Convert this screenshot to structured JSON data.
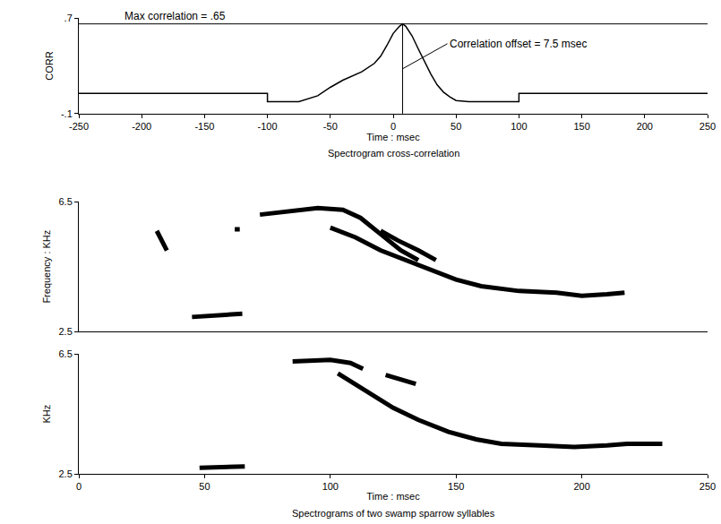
{
  "chart_data": [
    {
      "type": "line",
      "title": "Spectrogram cross-correlation",
      "x_label": "Time : msec",
      "y_label": "CORR",
      "x": [
        -250,
        -100,
        -100,
        -75,
        -60,
        -50,
        -40,
        -25,
        -15,
        -10,
        -5,
        0,
        5,
        7.5,
        10,
        15,
        20,
        25,
        30,
        35,
        40,
        45,
        50,
        60,
        100,
        100,
        250
      ],
      "values": [
        0.07,
        0.07,
        0.0,
        0.0,
        0.05,
        0.12,
        0.18,
        0.25,
        0.32,
        0.38,
        0.47,
        0.57,
        0.63,
        0.65,
        0.63,
        0.55,
        0.44,
        0.33,
        0.23,
        0.14,
        0.08,
        0.04,
        0.01,
        0.0,
        0.0,
        0.07,
        0.07
      ],
      "color": "#000000",
      "xlim": [
        -250,
        250
      ],
      "xticks": [
        -250,
        -200,
        -150,
        -100,
        -50,
        0,
        50,
        100,
        150,
        200,
        250
      ],
      "ylim": [
        -0.1,
        0.7
      ],
      "yticks": [
        {
          "value": -0.1,
          "label": "-.1"
        },
        {
          "value": 0.7,
          "label": ".7"
        }
      ],
      "max_correlation": {
        "text": "Max correlation = .65",
        "value": 0.65
      },
      "offset": {
        "text": "Correlation offset = 7.5 msec",
        "value": 7.5
      }
    },
    {
      "type": "line",
      "y_label": "Frequency : KHz",
      "color": "#000000",
      "tick_labels": "y",
      "xlim": [
        0,
        250
      ],
      "ylim": [
        2.5,
        6.5
      ],
      "yticks": [
        2.5,
        6.5
      ],
      "series": [
        {
          "x": [
            31,
            33,
            35
          ],
          "values": [
            5.6,
            5.3,
            5.0
          ]
        },
        {
          "x": [
            45,
            55,
            65
          ],
          "values": [
            2.95,
            3.0,
            3.05
          ]
        },
        {
          "x": [
            62,
            64
          ],
          "values": [
            5.65,
            5.65
          ]
        },
        {
          "x": [
            72,
            85,
            95,
            105,
            112,
            120,
            128,
            135
          ],
          "values": [
            6.1,
            6.2,
            6.3,
            6.25,
            6.0,
            5.5,
            5.0,
            4.7
          ]
        },
        {
          "x": [
            100,
            110,
            120,
            130,
            140,
            150,
            160,
            175,
            190,
            200,
            210,
            217
          ],
          "values": [
            5.7,
            5.4,
            5.0,
            4.7,
            4.4,
            4.1,
            3.9,
            3.75,
            3.7,
            3.6,
            3.65,
            3.7
          ]
        },
        {
          "x": [
            120,
            127,
            135,
            142
          ],
          "values": [
            5.6,
            5.3,
            5.0,
            4.7
          ]
        }
      ]
    },
    {
      "type": "line",
      "title": "Spectrograms of two swamp sparrow syllables",
      "x_label": "Time : msec",
      "y_label": "KHz",
      "color": "#000000",
      "xlim": [
        0,
        250
      ],
      "xticks": [
        0,
        50,
        100,
        150,
        200,
        250
      ],
      "ylim": [
        2.5,
        6.5
      ],
      "yticks": [
        2.5,
        6.5
      ],
      "series": [
        {
          "x": [
            48,
            57,
            66
          ],
          "values": [
            2.7,
            2.72,
            2.75
          ]
        },
        {
          "x": [
            85,
            100,
            108,
            113
          ],
          "values": [
            6.25,
            6.3,
            6.2,
            6.0
          ]
        },
        {
          "x": [
            122,
            128,
            134
          ],
          "values": [
            5.8,
            5.65,
            5.5
          ]
        },
        {
          "x": [
            103,
            115,
            125,
            135,
            147,
            158,
            168,
            183,
            197,
            210,
            218,
            232
          ],
          "values": [
            5.85,
            5.2,
            4.7,
            4.3,
            3.9,
            3.65,
            3.5,
            3.45,
            3.4,
            3.45,
            3.5,
            3.5
          ]
        }
      ]
    }
  ]
}
